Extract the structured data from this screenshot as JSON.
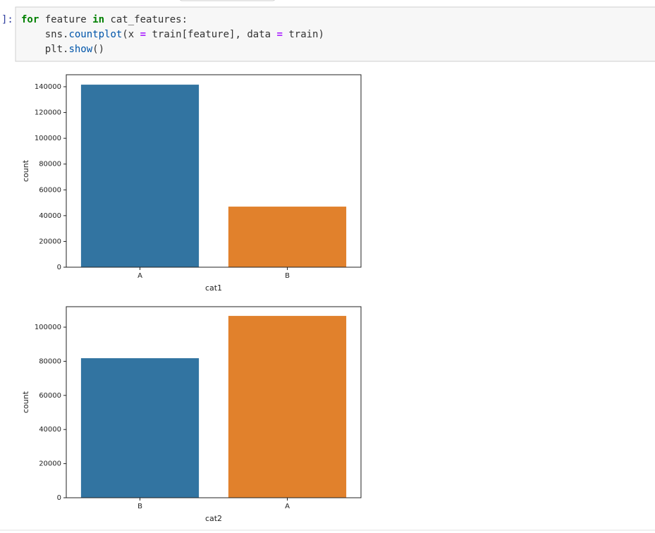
{
  "cell": {
    "prompt": "]:",
    "lines": [
      [
        {
          "text": "for",
          "color": "#008000",
          "bold": true
        },
        {
          "text": " feature ",
          "color": "#333333"
        },
        {
          "text": "in",
          "color": "#008000",
          "bold": true
        },
        {
          "text": " cat_features:",
          "color": "#333333"
        }
      ],
      [
        {
          "text": "    sns.",
          "color": "#333333"
        },
        {
          "text": "countplot",
          "color": "#0055aa"
        },
        {
          "text": "(x ",
          "color": "#333333"
        },
        {
          "text": "=",
          "color": "#aa22ff",
          "bold": true
        },
        {
          "text": " train[feature], data ",
          "color": "#333333"
        },
        {
          "text": "=",
          "color": "#aa22ff",
          "bold": true
        },
        {
          "text": " train)",
          "color": "#333333"
        }
      ],
      [
        {
          "text": "    plt.",
          "color": "#333333"
        },
        {
          "text": "show",
          "color": "#0055aa"
        },
        {
          "text": "()",
          "color": "#333333"
        }
      ]
    ]
  },
  "chart_data": [
    {
      "type": "bar",
      "x_label": "cat1",
      "y_label": "count",
      "categories": [
        "A",
        "B"
      ],
      "values": [
        141600,
        47000
      ],
      "colors": [
        "#3274a1",
        "#e1812c"
      ],
      "ylim": [
        0,
        149300
      ],
      "yticks": [
        0,
        20000,
        40000,
        60000,
        80000,
        100000,
        120000,
        140000
      ]
    },
    {
      "type": "bar",
      "x_label": "cat2",
      "y_label": "count",
      "categories": [
        "B",
        "A"
      ],
      "values": [
        81800,
        106600
      ],
      "colors": [
        "#3274a1",
        "#e1812c"
      ],
      "ylim": [
        0,
        112000
      ],
      "yticks": [
        0,
        20000,
        40000,
        60000,
        80000,
        100000
      ]
    }
  ]
}
